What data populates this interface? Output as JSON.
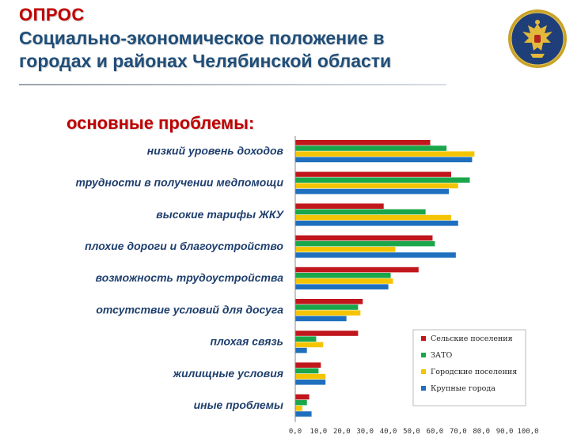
{
  "header": {
    "survey_label": "ОПРОС",
    "title_line1": "Социально-экономическое положение в",
    "title_line2": "городах и районах Челябинской области"
  },
  "emblem": {
    "icon": "double-headed-eagle-emblem",
    "colors": {
      "ring": "#c9a227",
      "field": "#1f3f7a"
    }
  },
  "chart_data": {
    "type": "bar",
    "orientation": "horizontal",
    "title": "основные проблемы:",
    "categories": [
      "низкий уровень доходов",
      "трудности в получении медпомощи",
      "высокие тарифы ЖКУ",
      "плохие дороги и благоустройство",
      "возможность трудоустройства",
      "отсутствие условий для досуга",
      "плохая связь",
      "жилищные условия",
      "иные проблемы"
    ],
    "series": [
      {
        "name": "Сельские поселения",
        "color": "#c0161c",
        "values": [
          58,
          67,
          38,
          59,
          53,
          29,
          27,
          11,
          6
        ]
      },
      {
        "name": "ЗАТО",
        "color": "#1aa64a",
        "values": [
          65,
          75,
          56,
          60,
          41,
          27,
          9,
          10,
          5
        ]
      },
      {
        "name": "Городские поселения",
        "color": "#f5c400",
        "values": [
          77,
          70,
          67,
          43,
          42,
          28,
          12,
          13,
          3
        ]
      },
      {
        "name": "Крупные города",
        "color": "#1f6fbf",
        "values": [
          76,
          66,
          70,
          69,
          40,
          22,
          5,
          13,
          7
        ]
      }
    ],
    "x_ticks": [
      "0,0",
      "10,0",
      "20,0",
      "30,0",
      "40,0",
      "50,0",
      "60,0",
      "70,0",
      "80,0",
      "90,0",
      "100,0"
    ],
    "xlim": [
      0,
      100
    ],
    "legend": "bottom-right inside plot",
    "grid": false
  }
}
